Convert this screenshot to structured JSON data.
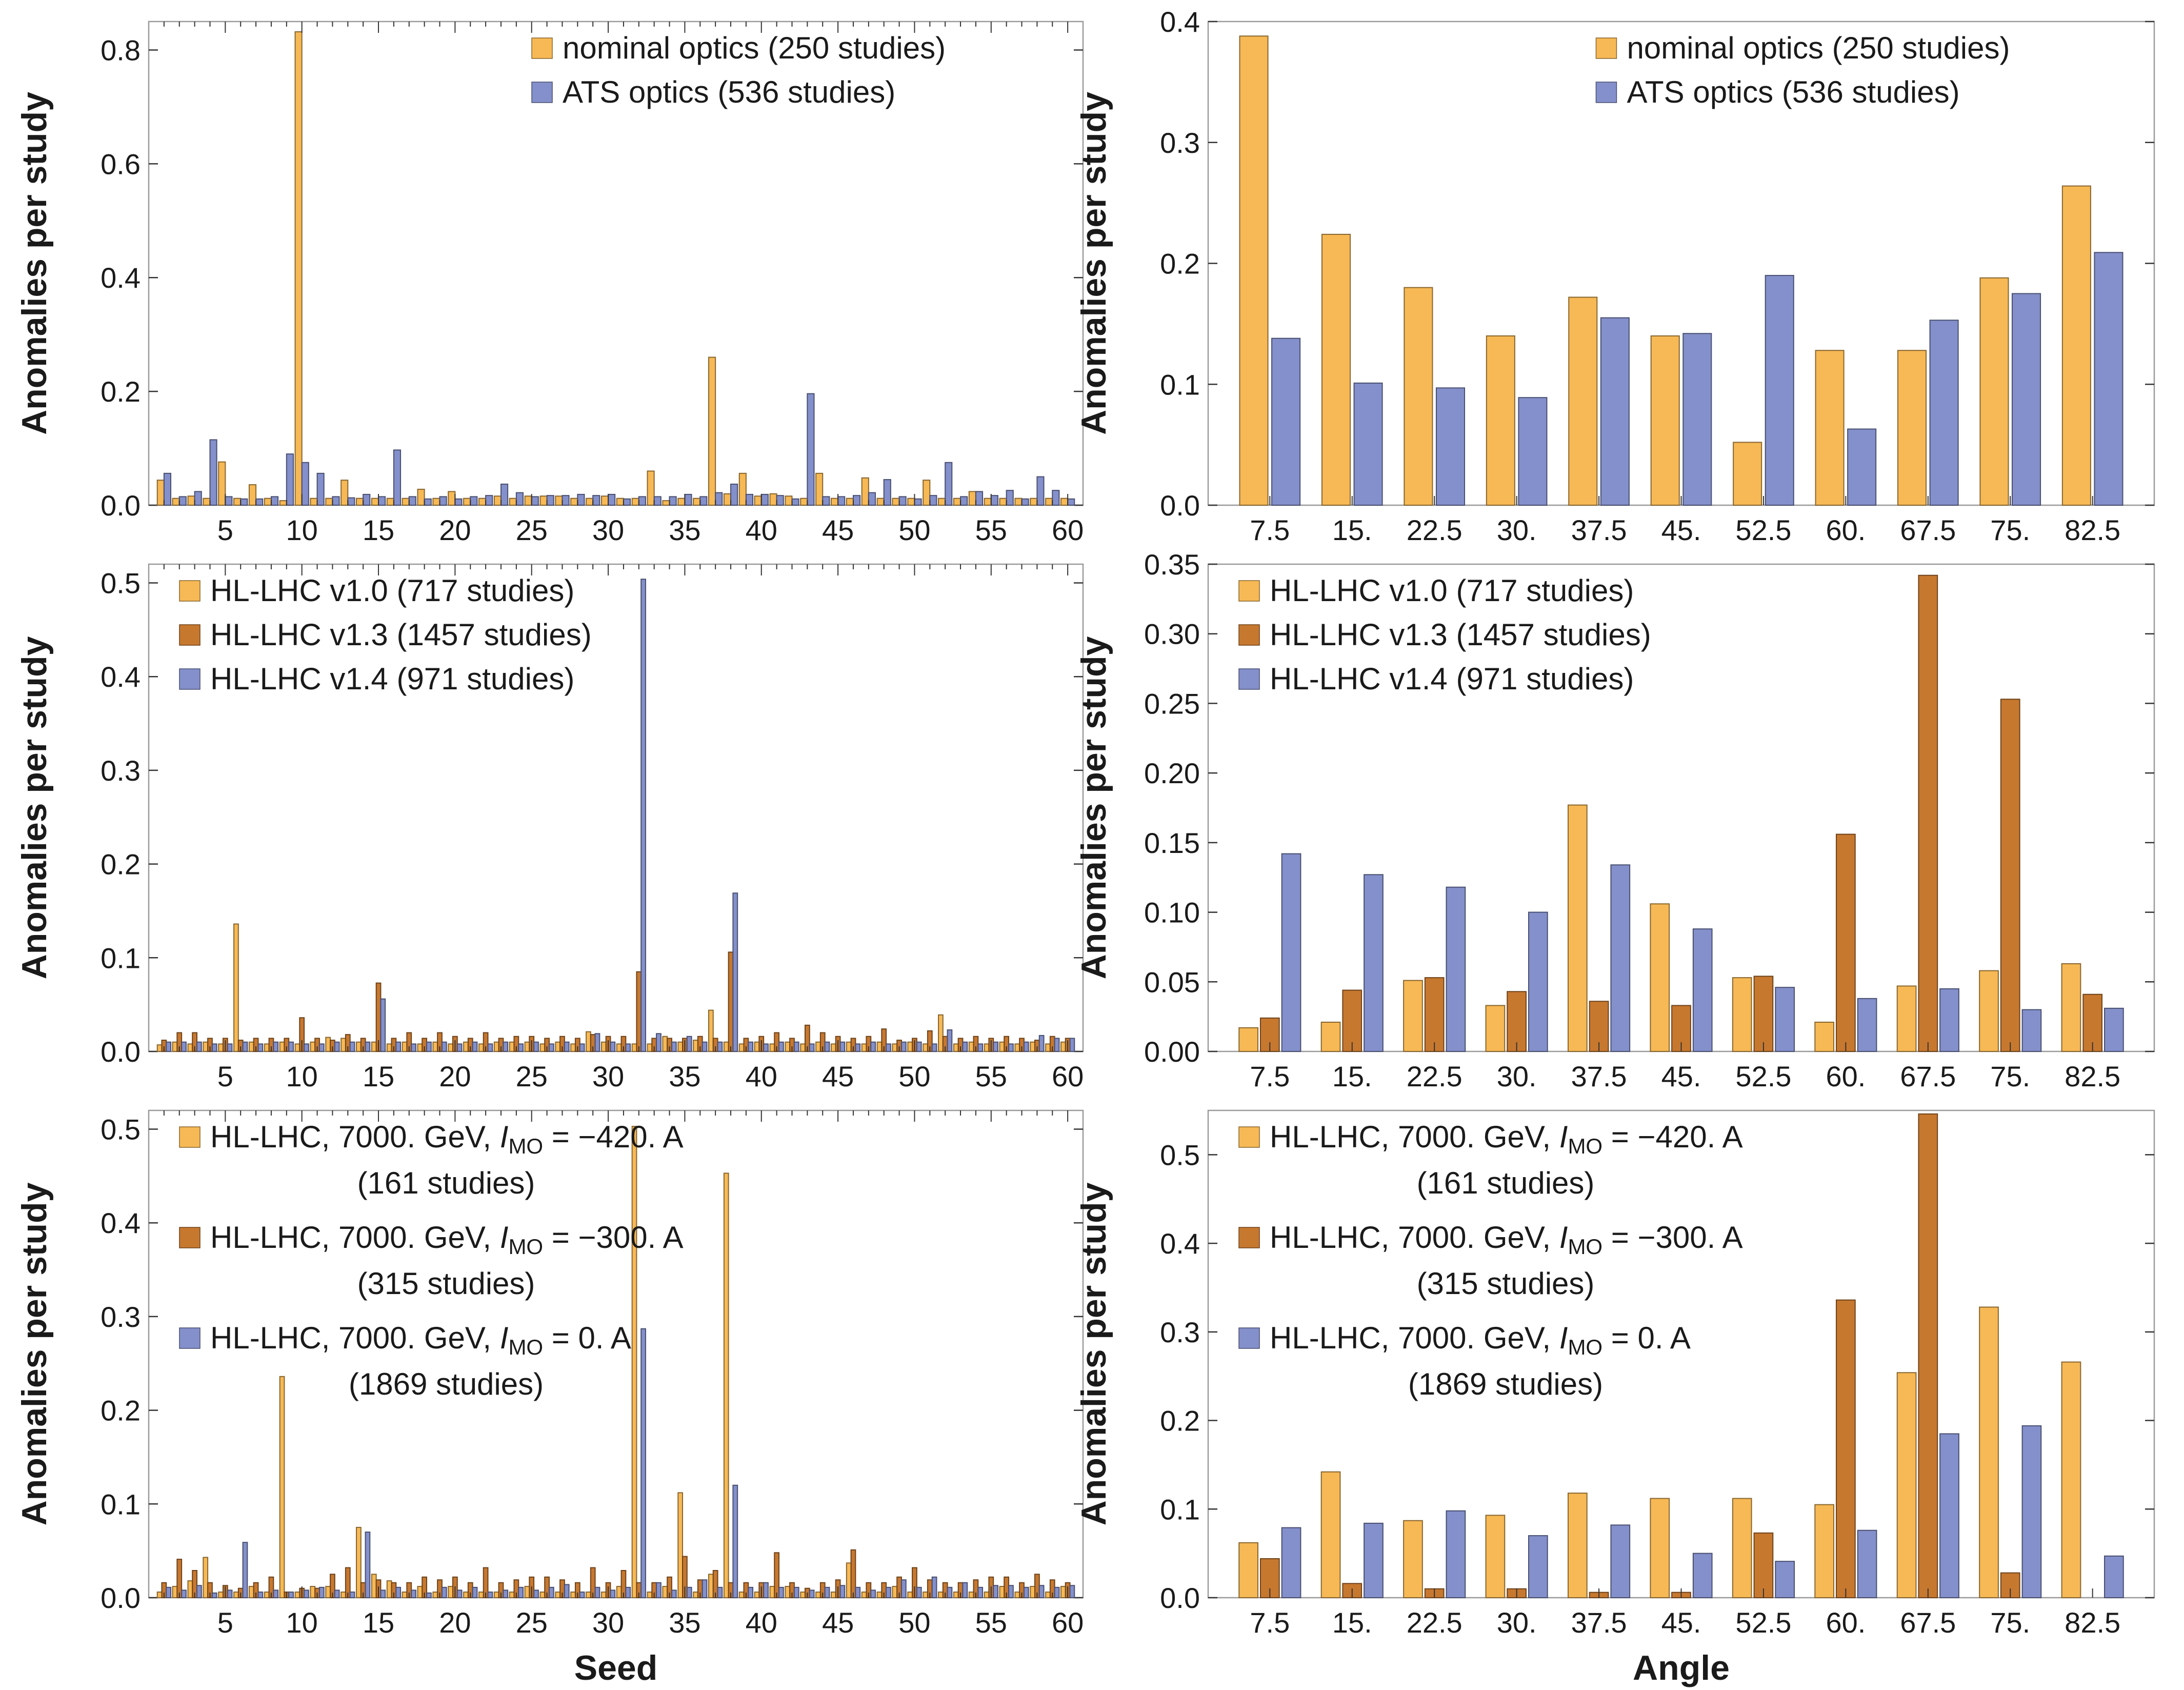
{
  "colors": {
    "nominal": "#F7B955",
    "ats": "#8490CB",
    "v10": "#F7B955",
    "v13": "#C7782F",
    "v14": "#8490CB",
    "i420": "#F7B955",
    "i300": "#C7782F",
    "i0": "#8490CB"
  },
  "chart_data": [
    {
      "type": "bar",
      "id": "seed-optics",
      "xlabel": "",
      "ylabel": "Anomalies per study",
      "xlim": [
        0,
        61
      ],
      "ylim": [
        0,
        0.85
      ],
      "xticks": [
        5,
        10,
        15,
        20,
        25,
        30,
        35,
        40,
        45,
        50,
        55,
        60
      ],
      "yticks": [
        0,
        0.2,
        0.4,
        0.6,
        0.8
      ],
      "ytick_labels": [
        "0.0",
        "0.2",
        "0.4",
        "0.6",
        "0.8"
      ],
      "x": [
        1,
        2,
        3,
        4,
        5,
        6,
        7,
        8,
        9,
        10,
        11,
        12,
        13,
        14,
        15,
        16,
        17,
        18,
        19,
        20,
        21,
        22,
        23,
        24,
        25,
        26,
        27,
        28,
        29,
        30,
        31,
        32,
        33,
        34,
        35,
        36,
        37,
        38,
        39,
        40,
        41,
        42,
        43,
        44,
        45,
        46,
        47,
        48,
        49,
        50,
        51,
        52,
        53,
        54,
        55,
        56,
        57,
        58,
        59,
        60
      ],
      "legend": {
        "position": "top-center"
      },
      "series": [
        {
          "name": "nominal optics (250 studies)",
          "color_key": "nominal",
          "values": [
            0.044,
            0.012,
            0.016,
            0.012,
            0.076,
            0.012,
            0.036,
            0.012,
            0.008,
            0.832,
            0.012,
            0.012,
            0.044,
            0.012,
            0.012,
            0.012,
            0.012,
            0.028,
            0.012,
            0.024,
            0.012,
            0.012,
            0.016,
            0.012,
            0.016,
            0.016,
            0.016,
            0.012,
            0.012,
            0.016,
            0.012,
            0.012,
            0.06,
            0.008,
            0.012,
            0.012,
            0.26,
            0.02,
            0.056,
            0.016,
            0.02,
            0.016,
            0.012,
            0.056,
            0.012,
            0.012,
            0.048,
            0.012,
            0.012,
            0.012,
            0.044,
            0.012,
            0.012,
            0.024,
            0.012,
            0.012,
            0.012,
            0.012,
            0.012,
            0.012
          ]
        },
        {
          "name": "ATS optics (536 studies)",
          "color_key": "ats",
          "values": [
            0.056,
            0.015,
            0.024,
            0.115,
            0.015,
            0.011,
            0.011,
            0.015,
            0.09,
            0.075,
            0.056,
            0.015,
            0.013,
            0.019,
            0.015,
            0.097,
            0.015,
            0.011,
            0.015,
            0.011,
            0.015,
            0.017,
            0.037,
            0.022,
            0.015,
            0.017,
            0.017,
            0.019,
            0.017,
            0.019,
            0.011,
            0.015,
            0.015,
            0.015,
            0.019,
            0.015,
            0.022,
            0.037,
            0.019,
            0.019,
            0.017,
            0.011,
            0.196,
            0.015,
            0.015,
            0.017,
            0.022,
            0.045,
            0.015,
            0.011,
            0.017,
            0.075,
            0.015,
            0.024,
            0.017,
            0.026,
            0.011,
            0.05,
            0.026,
            0.011
          ]
        }
      ]
    },
    {
      "type": "bar",
      "id": "angle-optics",
      "xlabel": "",
      "ylabel": "Anomalies per study",
      "ylim": [
        0,
        0.4
      ],
      "yticks": [
        0,
        0.1,
        0.2,
        0.3,
        0.4
      ],
      "ytick_labels": [
        "0.0",
        "0.1",
        "0.2",
        "0.3",
        "0.4"
      ],
      "categories": [
        "7.5",
        "15.",
        "22.5",
        "30.",
        "37.5",
        "45.",
        "52.5",
        "60.",
        "67.5",
        "75.",
        "82.5"
      ],
      "legend": {
        "position": "top-center"
      },
      "series": [
        {
          "name": "nominal optics (250 studies)",
          "color_key": "nominal",
          "values": [
            0.388,
            0.224,
            0.18,
            0.14,
            0.172,
            0.14,
            0.052,
            0.128,
            0.128,
            0.188,
            0.264
          ]
        },
        {
          "name": "ATS optics (536 studies)",
          "color_key": "ats",
          "values": [
            0.138,
            0.101,
            0.097,
            0.089,
            0.155,
            0.142,
            0.19,
            0.063,
            0.153,
            0.175,
            0.209
          ]
        }
      ]
    },
    {
      "type": "bar",
      "id": "seed-versions",
      "xlabel": "",
      "ylabel": "Anomalies per study",
      "xlim": [
        0,
        61
      ],
      "ylim": [
        0,
        0.52
      ],
      "xticks": [
        5,
        10,
        15,
        20,
        25,
        30,
        35,
        40,
        45,
        50,
        55,
        60
      ],
      "yticks": [
        0,
        0.1,
        0.2,
        0.3,
        0.4,
        0.5
      ],
      "ytick_labels": [
        "0.0",
        "0.1",
        "0.2",
        "0.3",
        "0.4",
        "0.5"
      ],
      "x": [
        1,
        2,
        3,
        4,
        5,
        6,
        7,
        8,
        9,
        10,
        11,
        12,
        13,
        14,
        15,
        16,
        17,
        18,
        19,
        20,
        21,
        22,
        23,
        24,
        25,
        26,
        27,
        28,
        29,
        30,
        31,
        32,
        33,
        34,
        35,
        36,
        37,
        38,
        39,
        40,
        41,
        42,
        43,
        44,
        45,
        46,
        47,
        48,
        49,
        50,
        51,
        52,
        53,
        54,
        55,
        56,
        57,
        58,
        59,
        60
      ],
      "legend": {
        "position": "top-left"
      },
      "series": [
        {
          "name": "HL-LHC v1.0 (717 studies)",
          "color_key": "v10",
          "values": [
            0.007,
            0.01,
            0.008,
            0.01,
            0.008,
            0.136,
            0.01,
            0.008,
            0.01,
            0.008,
            0.01,
            0.015,
            0.014,
            0.01,
            0.01,
            0.008,
            0.01,
            0.008,
            0.01,
            0.008,
            0.01,
            0.008,
            0.01,
            0.01,
            0.01,
            0.008,
            0.01,
            0.008,
            0.021,
            0.01,
            0.008,
            0.008,
            0.008,
            0.016,
            0.01,
            0.012,
            0.044,
            0.01,
            0.008,
            0.01,
            0.008,
            0.01,
            0.008,
            0.01,
            0.008,
            0.01,
            0.008,
            0.01,
            0.008,
            0.01,
            0.008,
            0.039,
            0.008,
            0.01,
            0.008,
            0.01,
            0.008,
            0.01,
            0.008,
            0.01
          ]
        },
        {
          "name": "HL-LHC v1.3 (1457 studies)",
          "color_key": "v13",
          "values": [
            0.012,
            0.02,
            0.02,
            0.014,
            0.014,
            0.012,
            0.014,
            0.014,
            0.014,
            0.036,
            0.014,
            0.012,
            0.018,
            0.014,
            0.073,
            0.014,
            0.02,
            0.014,
            0.02,
            0.016,
            0.014,
            0.02,
            0.014,
            0.016,
            0.016,
            0.014,
            0.016,
            0.014,
            0.018,
            0.016,
            0.016,
            0.085,
            0.014,
            0.014,
            0.014,
            0.016,
            0.014,
            0.106,
            0.014,
            0.016,
            0.02,
            0.014,
            0.028,
            0.02,
            0.016,
            0.014,
            0.016,
            0.024,
            0.012,
            0.014,
            0.022,
            0.016,
            0.014,
            0.016,
            0.014,
            0.016,
            0.014,
            0.012,
            0.016,
            0.014
          ]
        },
        {
          "name": "HL-LHC v1.4 (971 studies)",
          "color_key": "v14",
          "values": [
            0.01,
            0.01,
            0.01,
            0.008,
            0.008,
            0.01,
            0.008,
            0.01,
            0.01,
            0.008,
            0.008,
            0.01,
            0.01,
            0.01,
            0.056,
            0.01,
            0.008,
            0.01,
            0.01,
            0.008,
            0.01,
            0.008,
            0.01,
            0.008,
            0.01,
            0.008,
            0.01,
            0.008,
            0.019,
            0.01,
            0.008,
            0.504,
            0.019,
            0.01,
            0.016,
            0.01,
            0.01,
            0.169,
            0.01,
            0.008,
            0.01,
            0.01,
            0.008,
            0.01,
            0.01,
            0.008,
            0.01,
            0.008,
            0.01,
            0.01,
            0.008,
            0.023,
            0.01,
            0.008,
            0.01,
            0.008,
            0.01,
            0.017,
            0.014,
            0.014
          ]
        }
      ]
    },
    {
      "type": "bar",
      "id": "angle-versions",
      "xlabel": "",
      "ylabel": "Anomalies per study",
      "ylim": [
        0,
        0.35
      ],
      "yticks": [
        0,
        0.05,
        0.1,
        0.15,
        0.2,
        0.25,
        0.3,
        0.35
      ],
      "ytick_labels": [
        "0.00",
        "0.05",
        "0.10",
        "0.15",
        "0.20",
        "0.25",
        "0.30",
        "0.35"
      ],
      "categories": [
        "7.5",
        "15.",
        "22.5",
        "30.",
        "37.5",
        "45.",
        "52.5",
        "60.",
        "67.5",
        "75.",
        "82.5"
      ],
      "legend": {
        "position": "top-left"
      },
      "series": [
        {
          "name": "HL-LHC v1.0 (717 studies)",
          "color_key": "v10",
          "values": [
            0.017,
            0.021,
            0.051,
            0.033,
            0.177,
            0.106,
            0.053,
            0.021,
            0.047,
            0.058,
            0.063
          ]
        },
        {
          "name": "HL-LHC v1.3 (1457 studies)",
          "color_key": "v13",
          "values": [
            0.024,
            0.044,
            0.053,
            0.043,
            0.036,
            0.033,
            0.054,
            0.156,
            0.342,
            0.253,
            0.041
          ]
        },
        {
          "name": "HL-LHC v1.4 (971 studies)",
          "color_key": "v14",
          "values": [
            0.142,
            0.127,
            0.118,
            0.1,
            0.134,
            0.088,
            0.046,
            0.038,
            0.045,
            0.03,
            0.031
          ]
        }
      ]
    },
    {
      "type": "bar",
      "id": "seed-currents",
      "xlabel": "Seed",
      "ylabel": "Anomalies per study",
      "xlim": [
        0,
        61
      ],
      "ylim": [
        0,
        0.52
      ],
      "xticks": [
        5,
        10,
        15,
        20,
        25,
        30,
        35,
        40,
        45,
        50,
        55,
        60
      ],
      "yticks": [
        0,
        0.1,
        0.2,
        0.3,
        0.4,
        0.5
      ],
      "ytick_labels": [
        "0.0",
        "0.1",
        "0.2",
        "0.3",
        "0.4",
        "0.5"
      ],
      "x": [
        1,
        2,
        3,
        4,
        5,
        6,
        7,
        8,
        9,
        10,
        11,
        12,
        13,
        14,
        15,
        16,
        17,
        18,
        19,
        20,
        21,
        22,
        23,
        24,
        25,
        26,
        27,
        28,
        29,
        30,
        31,
        32,
        33,
        34,
        35,
        36,
        37,
        38,
        39,
        40,
        41,
        42,
        43,
        44,
        45,
        46,
        47,
        48,
        49,
        50,
        51,
        52,
        53,
        54,
        55,
        56,
        57,
        58,
        59,
        60
      ],
      "legend": {
        "position": "top-left"
      },
      "series": [
        {
          "name": "HL-LHC, 7000. GeV, I_MO = −420. A (161 studies)",
          "color_key": "i420",
          "values": [
            0.006,
            0.012,
            0.018,
            0.043,
            0.006,
            0.006,
            0.012,
            0.006,
            0.236,
            0.006,
            0.012,
            0.012,
            0.006,
            0.075,
            0.025,
            0.018,
            0.006,
            0.012,
            0.006,
            0.012,
            0.006,
            0.006,
            0.006,
            0.006,
            0.012,
            0.006,
            0.006,
            0.006,
            0.006,
            0.006,
            0.012,
            0.503,
            0.006,
            0.012,
            0.112,
            0.006,
            0.025,
            0.453,
            0.006,
            0.006,
            0.012,
            0.012,
            0.006,
            0.006,
            0.006,
            0.037,
            0.006,
            0.006,
            0.012,
            0.006,
            0.006,
            0.006,
            0.006,
            0.006,
            0.006,
            0.012,
            0.006,
            0.012,
            0.006,
            0.012
          ]
        },
        {
          "name": "HL-LHC, 7000. GeV, I_MO = −300. A (315 studies)",
          "color_key": "i300",
          "values": [
            0.016,
            0.041,
            0.029,
            0.016,
            0.013,
            0.01,
            0.016,
            0.022,
            0.006,
            0.01,
            0.01,
            0.025,
            0.032,
            0.016,
            0.019,
            0.016,
            0.016,
            0.022,
            0.019,
            0.022,
            0.016,
            0.032,
            0.016,
            0.019,
            0.022,
            0.022,
            0.019,
            0.016,
            0.032,
            0.016,
            0.029,
            0.016,
            0.016,
            0.022,
            0.044,
            0.019,
            0.029,
            0.016,
            0.016,
            0.016,
            0.048,
            0.016,
            0.01,
            0.016,
            0.019,
            0.051,
            0.016,
            0.016,
            0.022,
            0.032,
            0.019,
            0.016,
            0.016,
            0.019,
            0.022,
            0.022,
            0.016,
            0.025,
            0.019,
            0.016
          ]
        },
        {
          "name": "HL-LHC, 7000. GeV, I_MO = 0. A (1869 studies)",
          "color_key": "i0",
          "values": [
            0.011,
            0.008,
            0.013,
            0.005,
            0.008,
            0.059,
            0.006,
            0.008,
            0.006,
            0.008,
            0.011,
            0.008,
            0.006,
            0.07,
            0.008,
            0.011,
            0.008,
            0.005,
            0.011,
            0.008,
            0.011,
            0.006,
            0.008,
            0.011,
            0.008,
            0.011,
            0.014,
            0.006,
            0.011,
            0.008,
            0.011,
            0.287,
            0.016,
            0.008,
            0.011,
            0.019,
            0.011,
            0.12,
            0.011,
            0.016,
            0.011,
            0.011,
            0.008,
            0.011,
            0.013,
            0.011,
            0.008,
            0.011,
            0.019,
            0.011,
            0.022,
            0.011,
            0.016,
            0.011,
            0.013,
            0.013,
            0.011,
            0.013,
            0.011,
            0.013
          ]
        }
      ]
    },
    {
      "type": "bar",
      "id": "angle-currents",
      "xlabel": "Angle",
      "ylabel": "Anomalies per study",
      "ylim": [
        0,
        0.55
      ],
      "yticks": [
        0,
        0.1,
        0.2,
        0.3,
        0.4,
        0.5
      ],
      "ytick_labels": [
        "0.0",
        "0.1",
        "0.2",
        "0.3",
        "0.4",
        "0.5"
      ],
      "categories": [
        "7.5",
        "15.",
        "22.5",
        "30.",
        "37.5",
        "45.",
        "52.5",
        "60.",
        "67.5",
        "75.",
        "82.5"
      ],
      "legend": {
        "position": "top-left"
      },
      "series": [
        {
          "name": "HL-LHC, 7000. GeV, I_MO = −420. A (161 studies)",
          "color_key": "i420",
          "values": [
            0.062,
            0.142,
            0.087,
            0.093,
            0.118,
            0.112,
            0.112,
            0.105,
            0.254,
            0.328,
            0.266
          ]
        },
        {
          "name": "HL-LHC, 7000. GeV, I_MO = −300. A (315 studies)",
          "color_key": "i300",
          "values": [
            0.044,
            0.016,
            0.01,
            0.01,
            0.006,
            0.006,
            0.073,
            0.336,
            0.546,
            0.028,
            0.0
          ]
        },
        {
          "name": "HL-LHC, 7000. GeV, I_MO = 0. A (1869 studies)",
          "color_key": "i0",
          "values": [
            0.079,
            0.084,
            0.098,
            0.07,
            0.082,
            0.05,
            0.041,
            0.076,
            0.185,
            0.194,
            0.047
          ]
        }
      ]
    }
  ]
}
